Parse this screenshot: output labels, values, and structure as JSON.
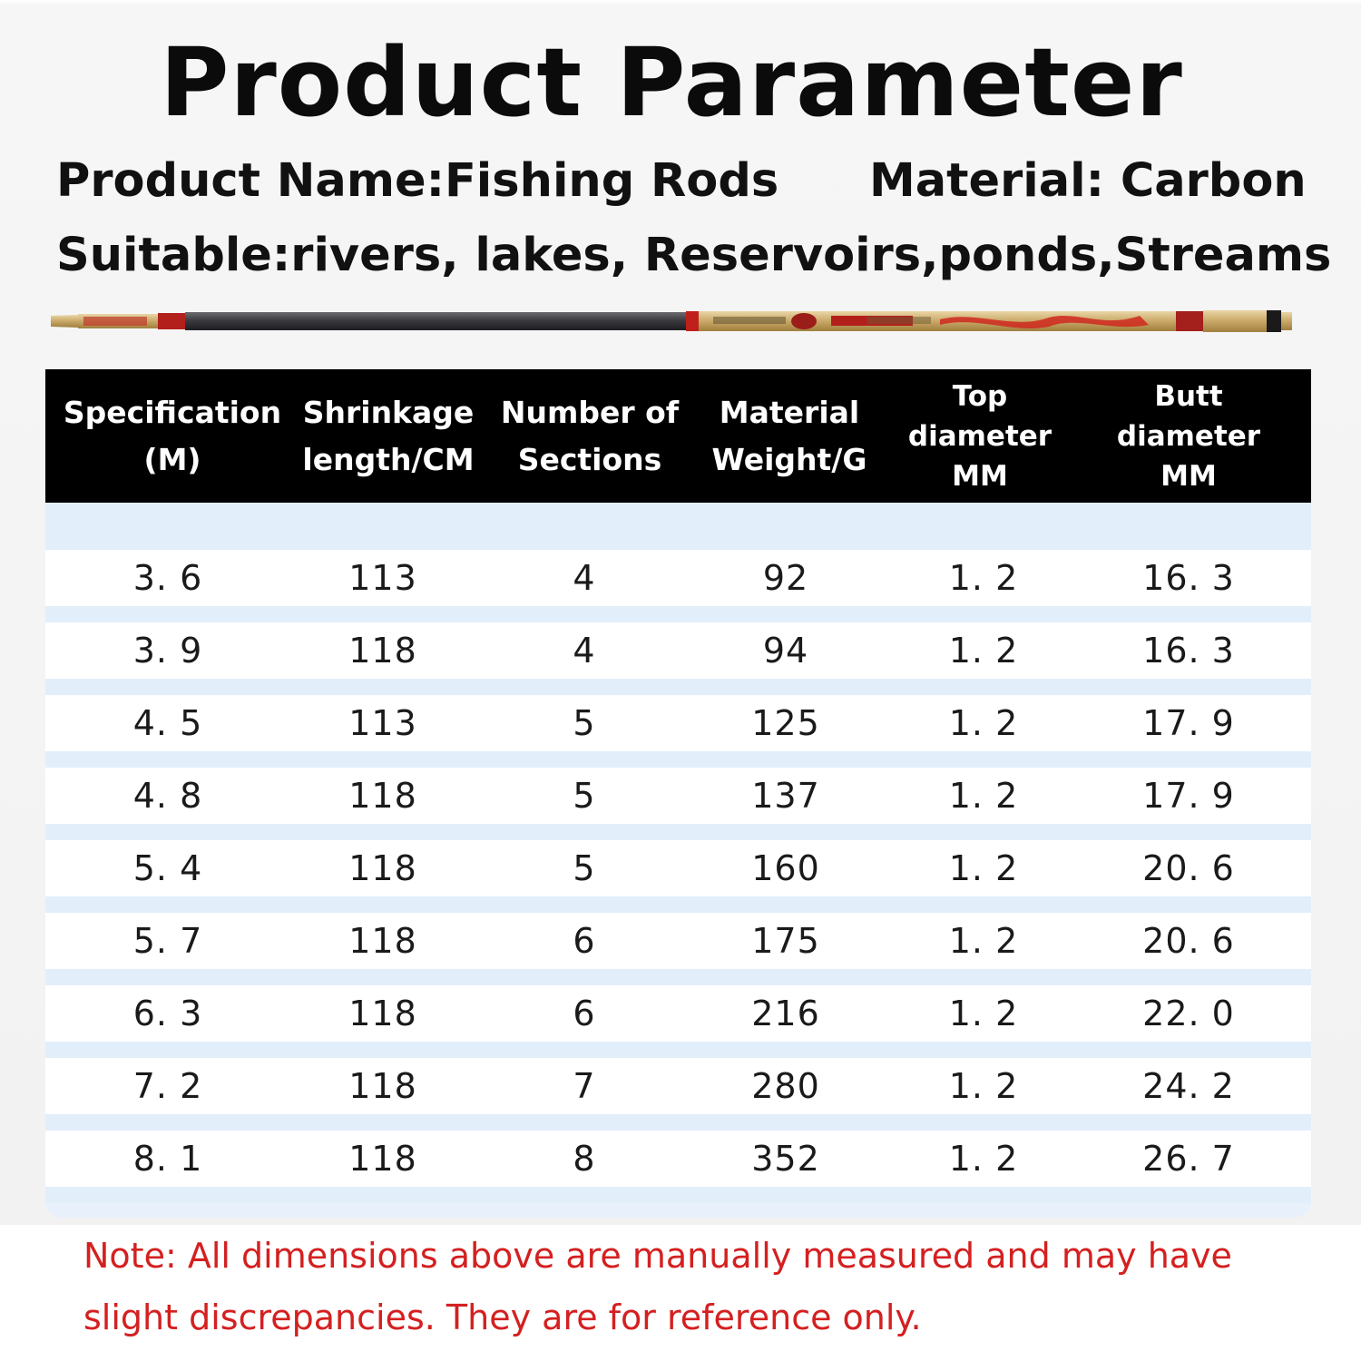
{
  "title": "Product Parameter",
  "info": {
    "product_name": "Product Name:Fishing Rods",
    "material": "Material: Carbon",
    "suitable": "Suitable:rivers, lakes, Reservoirs,ponds,Streams"
  },
  "table": {
    "headers": [
      [
        "Specification",
        "(M)"
      ],
      [
        "Shrinkage",
        "length/CM"
      ],
      [
        "Number of",
        "Sections"
      ],
      [
        "Material",
        "Weight/G"
      ],
      [
        "Top",
        "diameter",
        "MM"
      ],
      [
        "Butt",
        "diameter",
        "MM"
      ]
    ],
    "rows": [
      [
        "3. 6",
        "113",
        "4",
        "92",
        "1. 2",
        "16. 3"
      ],
      [
        "3. 9",
        "118",
        "4",
        "94",
        "1. 2",
        "16. 3"
      ],
      [
        "4. 5",
        "113",
        "5",
        "125",
        "1. 2",
        "17. 9"
      ],
      [
        "4. 8",
        "118",
        "5",
        "137",
        "1. 2",
        "17. 9"
      ],
      [
        "5. 4",
        "118",
        "5",
        "160",
        "1. 2",
        "20. 6"
      ],
      [
        "5. 7",
        "118",
        "6",
        "175",
        "1. 2",
        "20. 6"
      ],
      [
        "6. 3",
        "118",
        "6",
        "216",
        "1. 2",
        "22. 0"
      ],
      [
        "7. 2",
        "118",
        "7",
        "280",
        "1. 2",
        "24. 2"
      ],
      [
        "8. 1",
        "118",
        "8",
        "352",
        "1. 2",
        "26. 7"
      ]
    ]
  },
  "note": "Note: All dimensions above are manually measured and may have slight discrepancies. They are for reference only.",
  "colors": {
    "note": "#d42020",
    "header_bg": "#000000",
    "row_stripe": "#e3eefb"
  }
}
